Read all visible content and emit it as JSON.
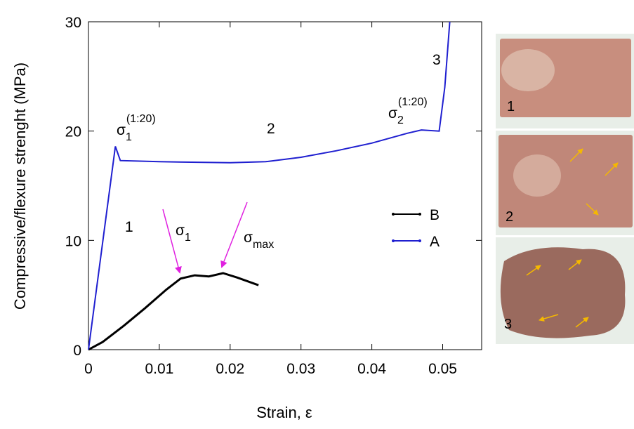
{
  "chart_data": {
    "type": "line",
    "x_label": "Strain, ε",
    "y_label": "Compressive/flexure strenght (MPa)",
    "xlim": [
      0,
      0.0555
    ],
    "ylim": [
      0,
      30
    ],
    "xticks": [
      0,
      0.01,
      0.02,
      0.03,
      0.04,
      0.05
    ],
    "yticks": [
      0,
      10,
      20,
      30
    ],
    "legend": "center-right",
    "series": [
      {
        "name": "B",
        "color": "#000000",
        "x": [
          0,
          0.002,
          0.005,
          0.008,
          0.011,
          0.013,
          0.015,
          0.017,
          0.019,
          0.021,
          0.024
        ],
        "values": [
          0,
          0.7,
          2.2,
          3.8,
          5.5,
          6.5,
          6.8,
          6.7,
          7.0,
          6.6,
          5.9
        ]
      },
      {
        "name": "A",
        "color": "#1f1fd0",
        "x": [
          0,
          0.0038,
          0.0045,
          0.01,
          0.02,
          0.025,
          0.03,
          0.035,
          0.04,
          0.045,
          0.047,
          0.0495,
          0.0503,
          0.051
        ],
        "values": [
          0,
          18.6,
          17.3,
          17.2,
          17.1,
          17.2,
          17.6,
          18.2,
          18.9,
          19.8,
          20.1,
          20.0,
          24,
          30
        ]
      }
    ],
    "annotations": [
      {
        "text": "σ",
        "sub": "1",
        "sup": "(1:20)"
      },
      {
        "text": "2"
      },
      {
        "text": "σ",
        "sub": "2",
        "sup": "(1:20)"
      },
      {
        "text": "3"
      },
      {
        "text": "1"
      },
      {
        "text": "σ",
        "sub": "1"
      },
      {
        "text": "σ",
        "sub": "max"
      }
    ],
    "photos": [
      {
        "label": "1"
      },
      {
        "label": "2"
      },
      {
        "label": "3"
      }
    ]
  }
}
